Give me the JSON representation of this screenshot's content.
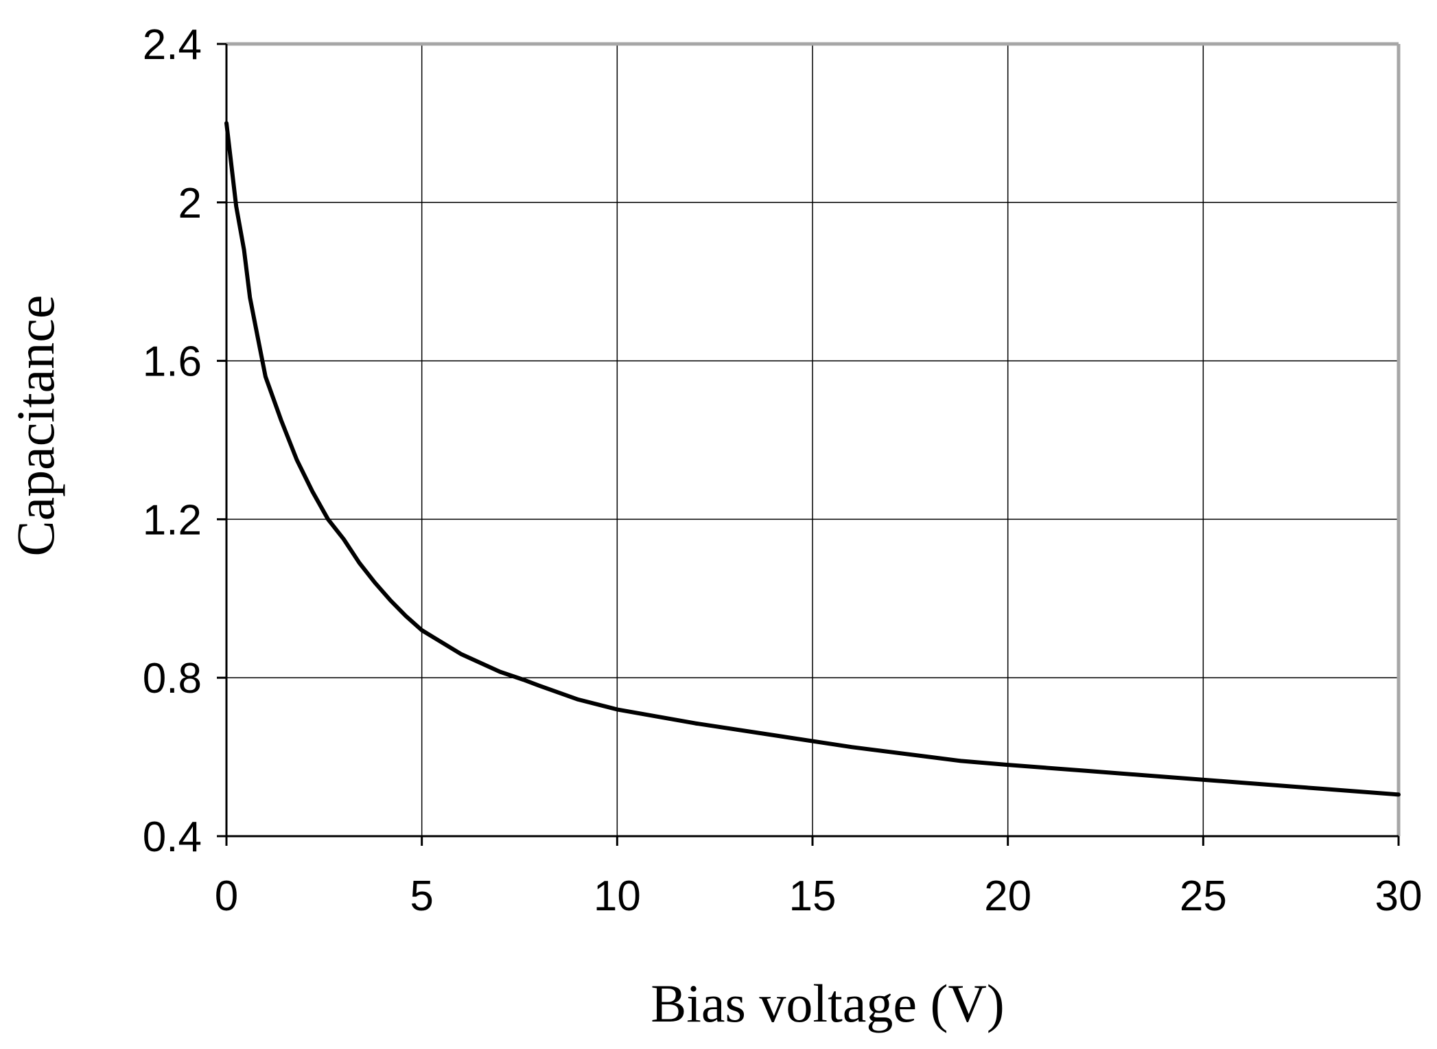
{
  "chart_data": {
    "type": "line",
    "title": "",
    "xlabel": "Bias voltage (V)",
    "ylabel": "Capacitance",
    "xlim": [
      0,
      30
    ],
    "ylim": [
      0.4,
      2.4
    ],
    "x_ticks": [
      0,
      5,
      10,
      15,
      20,
      25,
      30
    ],
    "x_tick_labels": [
      "0",
      "5",
      "10",
      "15",
      "20",
      "25",
      "30"
    ],
    "y_ticks": [
      0.4,
      0.8,
      1.2,
      1.6,
      2.0,
      2.4
    ],
    "y_tick_labels": [
      "0.4",
      "0.8",
      "1.2",
      "1.6",
      "2",
      "2.4"
    ],
    "grid": true,
    "legend": "none",
    "colors": {
      "line": "#000000",
      "grid": "#000000",
      "frame": "#a6a6a6",
      "background": "#ffffff"
    },
    "series": [
      {
        "x": [
          0,
          0.25,
          0.45,
          0.6,
          0.8,
          1.0,
          1.4,
          1.8,
          2.2,
          2.6,
          3.0,
          3.4,
          3.8,
          4.2,
          4.6,
          5.0,
          6.0,
          7.0,
          7.6,
          8.0,
          9.0,
          10.0,
          12.0,
          14.0,
          16.0,
          18.0,
          18.8,
          20.0,
          22.0,
          24.0,
          26.0,
          28.0,
          30.0
        ],
        "y": [
          2.2,
          1.99,
          1.88,
          1.76,
          1.66,
          1.56,
          1.45,
          1.35,
          1.27,
          1.2,
          1.15,
          1.09,
          1.04,
          0.995,
          0.955,
          0.92,
          0.86,
          0.815,
          0.795,
          0.78,
          0.745,
          0.72,
          0.685,
          0.655,
          0.625,
          0.6,
          0.59,
          0.58,
          0.565,
          0.55,
          0.535,
          0.52,
          0.505
        ]
      }
    ]
  }
}
